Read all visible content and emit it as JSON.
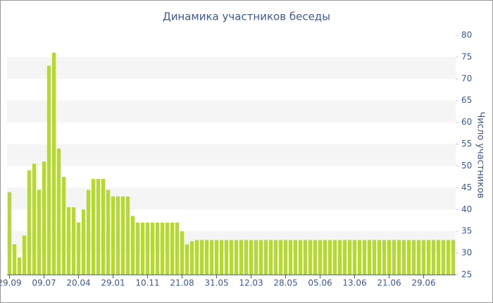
{
  "chart_data": {
    "type": "bar",
    "title": "Динамика участников беседы",
    "y_label": "Число участников",
    "categories": [
      "29.09",
      null,
      null,
      null,
      null,
      null,
      null,
      "09.07",
      null,
      null,
      null,
      null,
      null,
      null,
      "20.04",
      null,
      null,
      null,
      null,
      null,
      null,
      "29.01",
      null,
      null,
      null,
      null,
      null,
      null,
      "10.11",
      null,
      null,
      null,
      null,
      null,
      null,
      "21.08",
      null,
      null,
      null,
      null,
      null,
      null,
      "31.05",
      null,
      null,
      null,
      null,
      null,
      null,
      "12.03",
      null,
      null,
      null,
      null,
      null,
      null,
      "28.05",
      null,
      null,
      null,
      null,
      null,
      null,
      "05.06",
      null,
      null,
      null,
      null,
      null,
      null,
      "13.06",
      null,
      null,
      null,
      null,
      null,
      null,
      "21.06",
      null,
      null,
      null,
      null,
      null,
      null,
      "29.06",
      null,
      null,
      null,
      null,
      null,
      null
    ],
    "values": [
      44,
      32,
      29,
      34,
      49,
      50.5,
      44.5,
      51,
      73,
      76,
      54,
      47.5,
      40.5,
      40.5,
      37,
      40,
      44.5,
      47,
      47,
      47,
      44.5,
      43,
      43,
      43,
      43,
      38.5,
      37,
      37,
      37,
      37,
      37,
      37,
      37,
      37,
      37,
      35,
      32,
      32.7,
      33,
      33,
      33,
      33,
      33,
      33,
      33,
      33,
      33,
      33,
      33,
      33,
      33,
      33,
      33,
      33,
      33,
      33,
      33,
      33,
      33,
      33,
      33,
      33,
      33,
      33,
      33,
      33,
      33,
      33,
      33,
      33,
      33,
      33,
      33,
      33,
      33,
      33,
      33,
      33,
      33,
      33,
      33,
      33,
      33,
      33,
      33,
      33,
      33,
      33,
      33,
      33,
      33
    ],
    "color": "#b5d92f",
    "ylim": [
      25,
      80
    ],
    "yticks": [
      25,
      30,
      35,
      40,
      45,
      50,
      55,
      60,
      65,
      70,
      75,
      80
    ],
    "stripes": true
  }
}
